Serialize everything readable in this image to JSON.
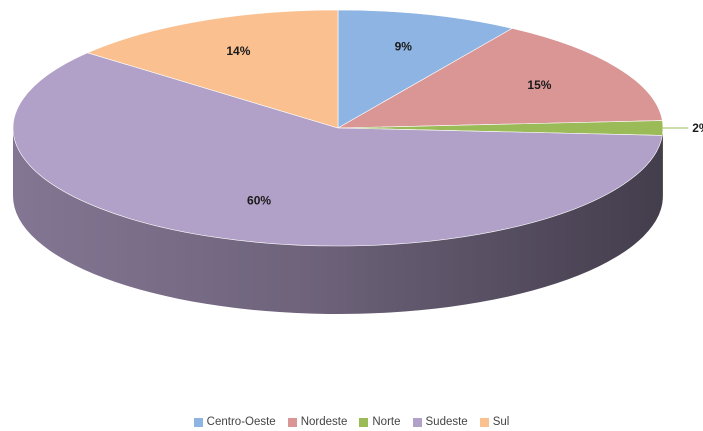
{
  "chart_data": {
    "type": "pie",
    "style": "3d",
    "categories": [
      "Centro-Oeste",
      "Nordeste",
      "Norte",
      "Sudeste",
      "Sul"
    ],
    "values": [
      9,
      15,
      2,
      60,
      14
    ],
    "labels": [
      "9%",
      "15%",
      "2%",
      "60%",
      "14%"
    ],
    "colors": [
      "#8eb4e3",
      "#d99694",
      "#9bbb59",
      "#b1a0c7",
      "#fac090"
    ],
    "legend": "bottom"
  }
}
